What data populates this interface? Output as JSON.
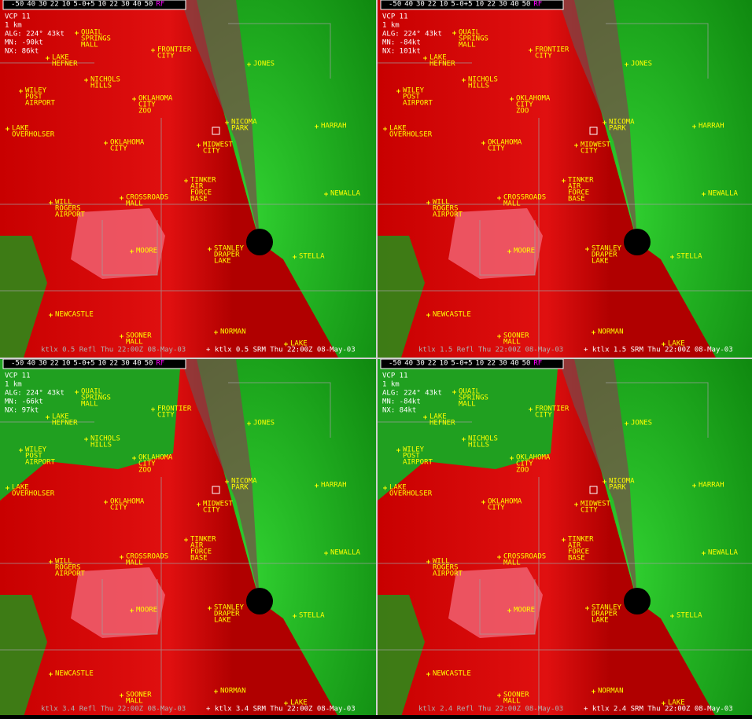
{
  "colorbar": [
    "-50",
    "40",
    "30",
    "22",
    "10",
    "5-0+5",
    "10",
    "22",
    "30",
    "40",
    "50",
    "RF"
  ],
  "vcp": "VCP 11",
  "scale": "1 km",
  "alg": "ALG: 224° 43kt",
  "places": [
    [
      "QUAIL",
      "SPRINGS",
      "MALL"
    ],
    [
      "LAKE",
      "HEFNER"
    ],
    [
      "FRONTIER",
      "CITY"
    ],
    [
      "JONES"
    ],
    [
      "WILEY",
      "POST",
      "AIRPORT"
    ],
    [
      "NICHOLS",
      "HILLS"
    ],
    [
      "OKLAHOMA",
      "CITY",
      "ZOO"
    ],
    [
      "NICOMA",
      "PARK"
    ],
    [
      "HARRAH"
    ],
    [
      "LAKE",
      "OVERHOLSER"
    ],
    [
      "OKLAHOMA",
      "CITY"
    ],
    [
      "MIDWEST",
      "CITY"
    ],
    [
      "TINKER",
      "AIR",
      "FORCE",
      "BASE"
    ],
    [
      "NEWALLA"
    ],
    [
      "WILL",
      "ROGERS",
      "AIRPORT"
    ],
    [
      "CROSSROADS",
      "MALL"
    ],
    [
      "MOORE"
    ],
    [
      "STANLEY",
      "DRAPER",
      "LAKE"
    ],
    [
      "STELLA"
    ],
    [
      "NEWCASTLE"
    ],
    [
      "SOONER",
      "MALL"
    ],
    [
      "NORMAN"
    ],
    [
      "LAKE"
    ]
  ],
  "panels": [
    {
      "mn": "MN: -90kt",
      "nx": "NX: 86kt",
      "footer_refl": "ktlx 0.5 Refl Thu 22:00Z 08-May-03",
      "footer_srm": "+ ktlx 0.5 SRM Thu 22:00Z 08-May-03"
    },
    {
      "mn": "MN: -84kt",
      "nx": "NX: 101kt",
      "footer_refl": "ktlx 1.5 Refl Thu 22:00Z 08-May-03",
      "footer_srm": "+ ktlx 1.5 SRM Thu 22:00Z 08-May-03"
    },
    {
      "mn": "MN: -66kt",
      "nx": "NX: 97kt",
      "footer_refl": "ktlx 3.4 Refl Thu 22:00Z 08-May-03",
      "footer_srm": "+ ktlx 3.4 SRM Thu 22:00Z 08-May-03"
    },
    {
      "mn": "MN: -84kt",
      "nx": "NX: 84kt",
      "footer_refl": "ktlx 2.4 Refl Thu 22:00Z 08-May-03",
      "footer_srm": "+ ktlx 2.4 SRM Thu 22:00Z 08-May-03"
    }
  ]
}
